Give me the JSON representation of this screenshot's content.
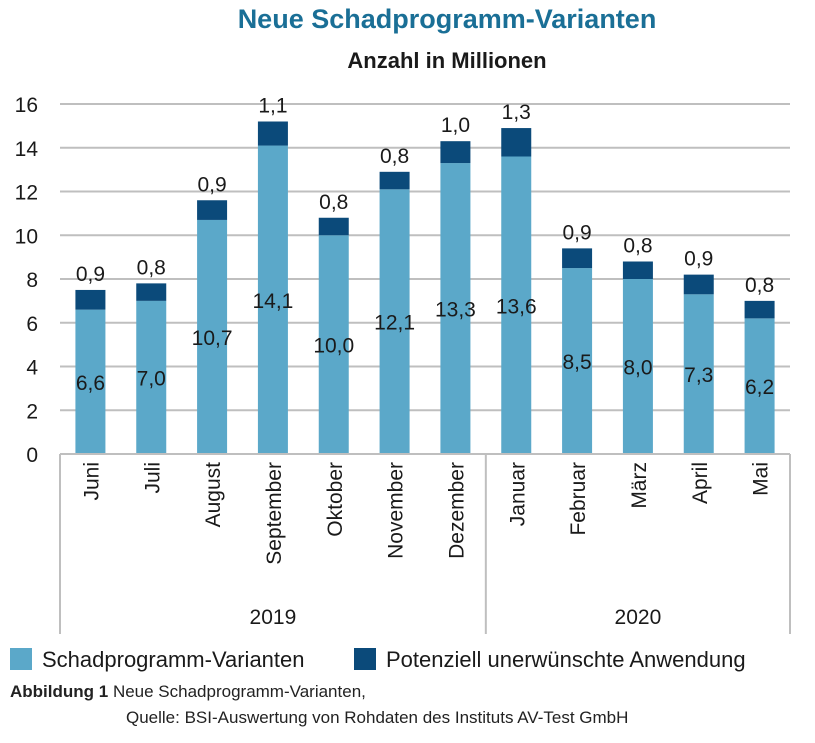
{
  "chart_data": {
    "type": "bar",
    "stacked": true,
    "title": "Neue Schadprogramm-Varianten",
    "subtitle": "Anzahl in Millionen",
    "categories": [
      "Juni",
      "Juli",
      "August",
      "September",
      "Oktober",
      "November",
      "Dezember",
      "Januar",
      "Februar",
      "März",
      "April",
      "Mai"
    ],
    "series": [
      {
        "name": "Schadprogramm-Varianten",
        "color": "#5ba8c9",
        "values": [
          6.6,
          7.0,
          10.7,
          14.1,
          10.0,
          12.1,
          13.3,
          13.6,
          8.5,
          8.0,
          7.3,
          6.2
        ],
        "labels": [
          "6,6",
          "7,0",
          "10,7",
          "14,1",
          "10,0",
          "12,1",
          "13,3",
          "13,6",
          "8,5",
          "8,0",
          "7,3",
          "6,2"
        ]
      },
      {
        "name": "Potenziell unerwünschte Anwendung",
        "color": "#0b4a7a",
        "values": [
          0.9,
          0.8,
          0.9,
          1.1,
          0.8,
          0.8,
          1.0,
          1.3,
          0.9,
          0.8,
          0.9,
          0.8
        ],
        "labels": [
          "0,9",
          "0,8",
          "0,9",
          "1,1",
          "0,8",
          "0,8",
          "1,0",
          "1,3",
          "0,9",
          "0,8",
          "0,9",
          "0,8"
        ]
      }
    ],
    "year_groups": [
      {
        "label": "2019",
        "count": 7
      },
      {
        "label": "2020",
        "count": 5
      }
    ],
    "ylim": [
      0,
      16
    ],
    "yticks": [
      "0",
      "2",
      "4",
      "6",
      "8",
      "10",
      "12",
      "14",
      "16"
    ],
    "grid": true,
    "legend_position": "bottom"
  },
  "caption": {
    "label": "Abbildung 1",
    "text": " Neue Schadprogramm-Varianten,",
    "source": "Quelle: BSI-Auswertung von Rohdaten des Instituts AV-Test GmbH"
  },
  "colors": {
    "title": "#1a6f96",
    "axis": "#bfbfbf",
    "text": "#1a1a1a"
  }
}
